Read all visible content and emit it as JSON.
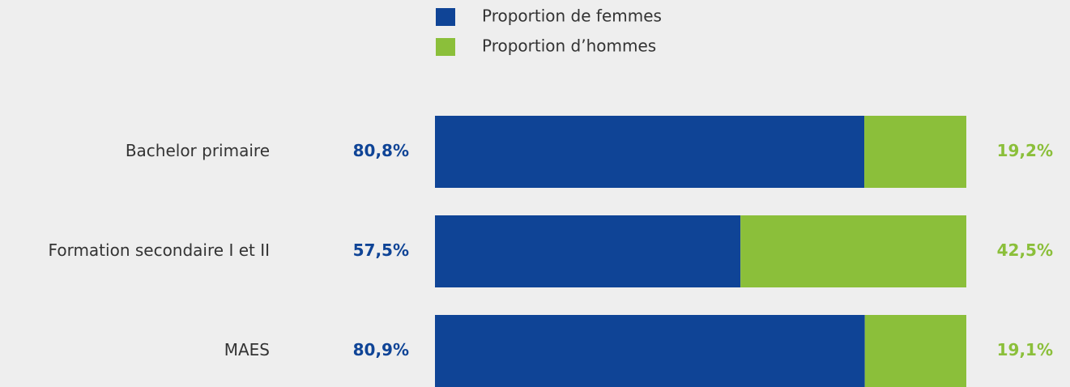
{
  "chart_data": {
    "type": "stacked_barh",
    "categories": [
      "Bachelor primaire",
      "Formation secondaire I et II",
      "MAES"
    ],
    "series": [
      {
        "name": "Proportion de femmes",
        "color": "#0f4496",
        "values": [
          80.8,
          57.5,
          80.9
        ],
        "value_labels": [
          "80,8%",
          "57,5%",
          "80,9%"
        ]
      },
      {
        "name": "Proportion d’hommes",
        "color": "#8bbf3a",
        "values": [
          19.2,
          42.5,
          19.1
        ],
        "value_labels": [
          "19,2%",
          "42,5%",
          "19,1%"
        ]
      }
    ]
  }
}
